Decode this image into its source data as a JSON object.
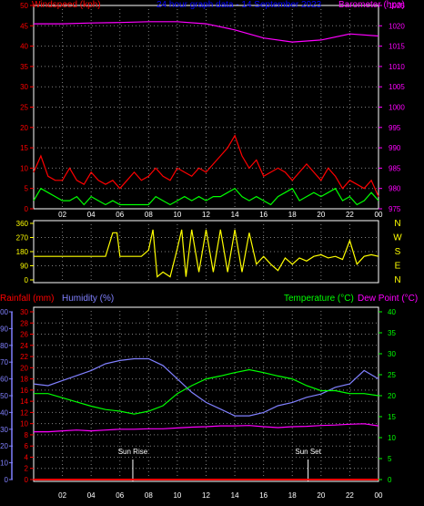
{
  "chart_data": [
    {
      "type": "line",
      "title": "24 hour graph data - 14 September 2023",
      "left_axis_label": "Windspeed (kph)",
      "right_axis_label": "Barometer (hpa)",
      "left_ylim": [
        0,
        50
      ],
      "left_ticks": [
        "0",
        "5",
        "10",
        "15",
        "20",
        "25",
        "30",
        "35",
        "40",
        "45",
        "50"
      ],
      "right_ylim": [
        975,
        1025
      ],
      "right_ticks": [
        "975",
        "980",
        "985",
        "990",
        "995",
        "1000",
        "1005",
        "1010",
        "1015",
        "1020",
        "1025"
      ],
      "x_ticks": [
        "02",
        "04",
        "06",
        "08",
        "10",
        "12",
        "14",
        "16",
        "18",
        "20",
        "22",
        "00"
      ],
      "colors": {
        "windspeed": "#ff0000",
        "average": "#00ff00",
        "barometer": "#ff00ff",
        "left_axis": "#ff0000",
        "right_axis": "#ff00ff",
        "title": "#0000ff"
      },
      "series": [
        {
          "name": "Windspeed (kph)",
          "axis": "left",
          "x": [
            0,
            0.5,
            1,
            1.5,
            2,
            2.5,
            3,
            3.5,
            4,
            4.5,
            5,
            5.5,
            6,
            6.5,
            7,
            7.5,
            8,
            8.5,
            9,
            9.5,
            10,
            10.5,
            11,
            11.5,
            12,
            12.5,
            13,
            13.5,
            14,
            14.5,
            15,
            15.5,
            16,
            16.5,
            17,
            17.5,
            18,
            18.5,
            19,
            19.5,
            20,
            20.5,
            21,
            21.5,
            22,
            22.5,
            23,
            23.5,
            24
          ],
          "values": [
            9,
            13,
            8,
            7,
            7,
            10,
            7,
            6,
            9,
            7,
            6,
            7,
            5,
            7,
            9,
            7,
            8,
            10,
            8,
            7,
            10,
            9,
            8,
            10,
            9,
            11,
            13,
            15,
            18,
            13,
            10,
            12,
            8,
            9,
            10,
            9,
            7,
            9,
            11,
            9,
            7,
            10,
            8,
            5,
            7,
            6,
            5,
            7,
            3
          ]
        },
        {
          "name": "",
          "axis": "left",
          "x": [
            0,
            0.5,
            1,
            1.5,
            2,
            2.5,
            3,
            3.5,
            4,
            4.5,
            5,
            5.5,
            6,
            6.5,
            7,
            7.5,
            8,
            8.5,
            9,
            9.5,
            10,
            10.5,
            11,
            11.5,
            12,
            12.5,
            13,
            13.5,
            14,
            14.5,
            15,
            15.5,
            16,
            16.5,
            17,
            17.5,
            18,
            18.5,
            19,
            19.5,
            20,
            20.5,
            21,
            21.5,
            22,
            22.5,
            23,
            23.5,
            24
          ],
          "values": [
            2,
            5,
            4,
            3,
            2,
            2,
            3,
            1,
            3,
            2,
            1,
            2,
            1,
            1,
            1,
            1,
            1,
            3,
            2,
            1,
            2,
            3,
            2,
            3,
            2,
            3,
            3,
            4,
            5,
            3,
            2,
            3,
            2,
            1,
            3,
            4,
            5,
            2,
            3,
            4,
            3,
            4,
            5,
            2,
            3,
            1,
            2,
            4,
            2
          ]
        },
        {
          "name": "Barometer (hpa)",
          "axis": "right",
          "x": [
            0,
            2,
            4,
            6,
            8,
            10,
            12,
            14,
            16,
            18,
            20,
            22,
            24
          ],
          "values": [
            1020.5,
            1020.5,
            1020.7,
            1020.8,
            1021,
            1021,
            1020.5,
            1019,
            1017,
            1016,
            1016.5,
            1018,
            1017.5
          ]
        }
      ]
    },
    {
      "type": "line",
      "side_labels": [
        "N",
        "W",
        "S",
        "E",
        "N"
      ],
      "ylim": [
        0,
        360
      ],
      "y_ticks": [
        "0",
        "90",
        "180",
        "270",
        "360"
      ],
      "colors": {
        "direction": "#ffff00",
        "axis": "#ffff00"
      },
      "series": [
        {
          "name": "",
          "x": [
            0,
            1,
            2,
            3,
            4,
            5,
            5.5,
            5.8,
            6,
            6.5,
            7,
            7.5,
            8,
            8.3,
            8.6,
            9,
            9.5,
            10,
            10.3,
            10.6,
            11,
            11.5,
            12,
            12.5,
            13,
            13.5,
            14,
            14.5,
            15,
            15.5,
            16,
            16.5,
            17,
            17.5,
            18,
            18.5,
            19,
            19.5,
            20,
            20.5,
            21,
            21.5,
            22,
            22.5,
            23,
            23.5,
            24
          ],
          "values": [
            150,
            150,
            150,
            150,
            150,
            150,
            300,
            300,
            150,
            150,
            150,
            150,
            190,
            320,
            20,
            50,
            20,
            200,
            320,
            20,
            320,
            50,
            320,
            50,
            320,
            50,
            320,
            50,
            300,
            100,
            150,
            100,
            60,
            140,
            100,
            140,
            120,
            150,
            160,
            140,
            150,
            130,
            250,
            100,
            150,
            160,
            150
          ]
        }
      ]
    },
    {
      "type": "line",
      "left_axis_label_1": "Rainfall (mm)",
      "left_axis_label_2": "Humidity (%)",
      "right_axis_label_1": "Temperature (°C)",
      "right_axis_label_2": "Dew Point (°C)",
      "rain_ylim": [
        0,
        30
      ],
      "rain_ticks": [
        "0",
        "2",
        "4",
        "6",
        "8",
        "10",
        "12",
        "14",
        "16",
        "18",
        "20",
        "22",
        "24",
        "26",
        "28",
        "30"
      ],
      "humidity_ylim": [
        0,
        100
      ],
      "humidity_ticks": [
        "0",
        "10",
        "20",
        "30",
        "40",
        "50",
        "60",
        "70",
        "80",
        "90",
        "100"
      ],
      "temp_ylim": [
        0,
        40
      ],
      "temp_ticks": [
        "0",
        "5",
        "10",
        "15",
        "20",
        "25",
        "30",
        "35",
        "40"
      ],
      "x_ticks": [
        "02",
        "04",
        "06",
        "08",
        "10",
        "12",
        "14",
        "16",
        "18",
        "20",
        "22",
        "00"
      ],
      "annotations": [
        {
          "label": "Sun Rise",
          "x": 6.9
        },
        {
          "label": "Sun Set",
          "x": 19.1
        }
      ],
      "colors": {
        "rainfall": "#ff0000",
        "humidity": "#8080ff",
        "temperature": "#00ff00",
        "dew_point": "#ff00ff",
        "rain_axis": "#ff0000",
        "humidity_axis": "#8080ff",
        "temp_axis": "#00ff00"
      },
      "series": [
        {
          "name": "Humidity (%)",
          "axis": "humidity",
          "x": [
            0,
            1,
            2,
            3,
            4,
            5,
            6,
            7,
            8,
            9,
            10,
            11,
            12,
            13,
            14,
            15,
            16,
            17,
            18,
            19,
            20,
            21,
            22,
            23,
            24
          ],
          "values": [
            57,
            56,
            59,
            62,
            65,
            69,
            71,
            72,
            72,
            68,
            60,
            52,
            46,
            42,
            38,
            38,
            40,
            44,
            46,
            49,
            51,
            55,
            57,
            65,
            60
          ]
        },
        {
          "name": "Temperature (°C)",
          "axis": "temp",
          "x": [
            0,
            1,
            2,
            3,
            4,
            5,
            6,
            7,
            8,
            9,
            10,
            11,
            12,
            13,
            14,
            15,
            16,
            17,
            18,
            19,
            20,
            21,
            22,
            23,
            24
          ],
          "values": [
            20.5,
            20.5,
            19.5,
            18.5,
            17.5,
            16.7,
            16.3,
            15.6,
            16.3,
            17.6,
            20.5,
            22.4,
            24,
            24.7,
            25.5,
            26.2,
            25.5,
            24.7,
            24,
            22.4,
            21.2,
            21.2,
            20.5,
            20.5,
            20
          ]
        },
        {
          "name": "Dew Point (°C)",
          "axis": "temp",
          "x": [
            0,
            1,
            2,
            3,
            4,
            5,
            6,
            7,
            8,
            9,
            10,
            11,
            12,
            13,
            14,
            15,
            16,
            17,
            18,
            19,
            20,
            21,
            22,
            23,
            24
          ],
          "values": [
            11.4,
            11.4,
            11.6,
            11.8,
            11.6,
            11.8,
            12,
            12,
            12.1,
            12.1,
            12.3,
            12.5,
            12.6,
            12.8,
            12.8,
            12.9,
            12.6,
            12.4,
            12.6,
            12.7,
            12.9,
            13,
            13.2,
            13.3,
            12.8
          ]
        },
        {
          "name": "Rainfall (mm)",
          "axis": "rain",
          "x": [
            0,
            24
          ],
          "values": [
            0,
            0
          ]
        }
      ]
    }
  ]
}
